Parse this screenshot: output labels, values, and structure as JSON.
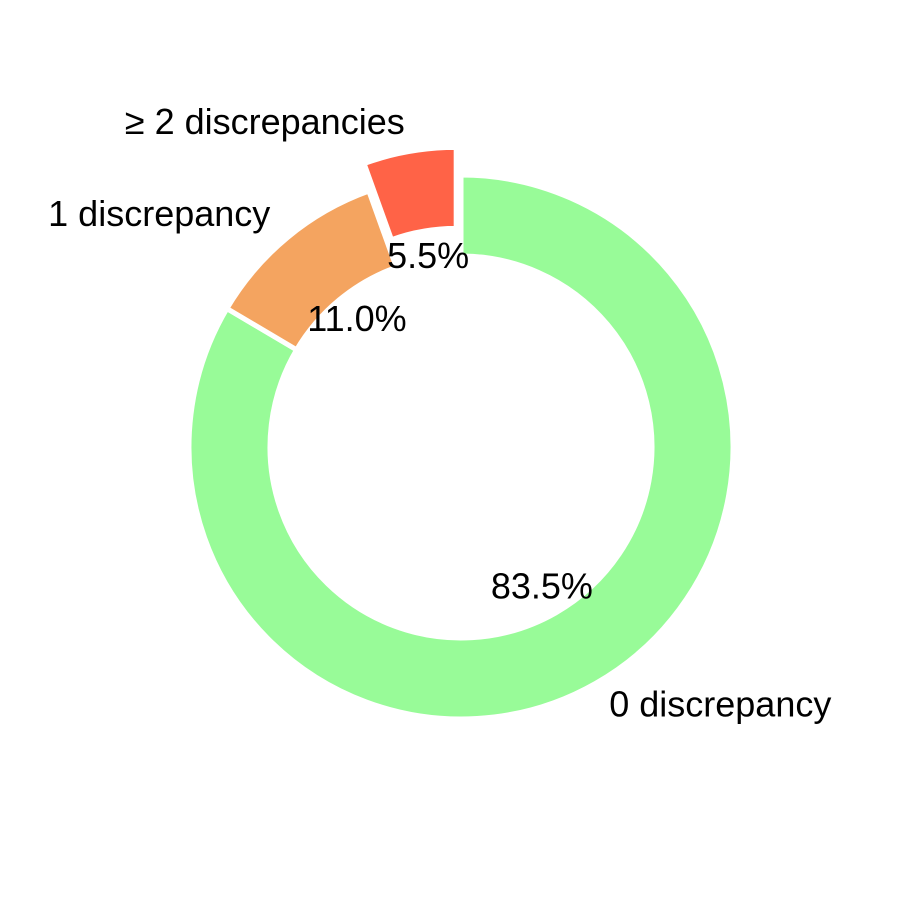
{
  "chart_data": {
    "type": "pie",
    "donut": true,
    "title": "",
    "start_angle_deg": 90,
    "direction": "clockwise",
    "categories": [
      "0 discrepancy",
      "1 discrepancy",
      "≥ 2 discrepancies"
    ],
    "values": [
      83.5,
      11.0,
      5.5
    ],
    "value_labels": [
      "83.5%",
      "11.0%",
      "5.5%"
    ],
    "exploded": [
      false,
      false,
      true
    ],
    "colors": [
      "#98FB98",
      "#F4A460",
      "#FF6347"
    ],
    "edge_color": "#ffffff"
  }
}
